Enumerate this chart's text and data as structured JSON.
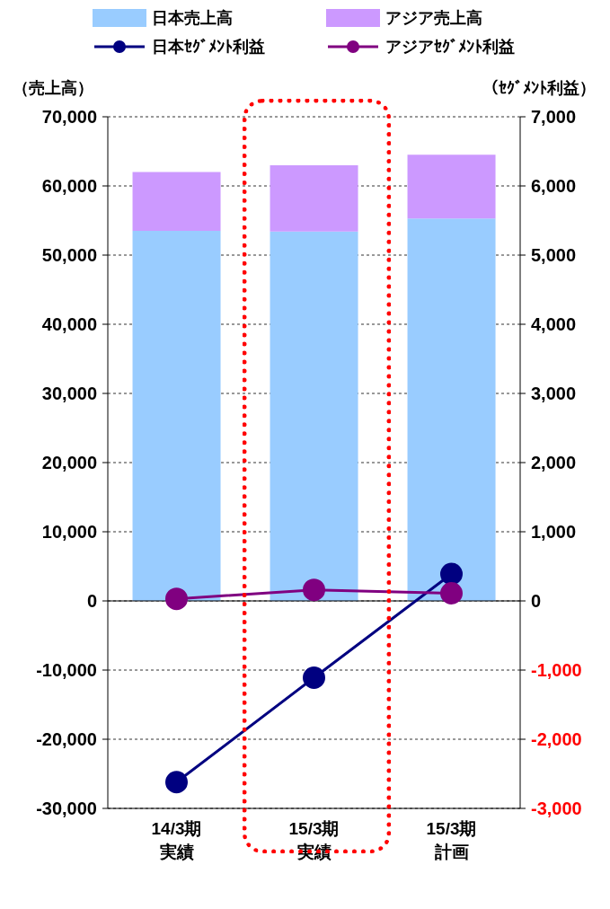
{
  "chart_data": {
    "type": "bar",
    "stacked": true,
    "categories": [
      "14/3期実績",
      "15/3期実績",
      "15/3期計画"
    ],
    "series": [
      {
        "name": "日本売上高",
        "color": "#99ccff",
        "values": [
          53500,
          53400,
          55300
        ]
      },
      {
        "name": "アジア売上高",
        "color": "#cc99ff",
        "values": [
          8500,
          9600,
          9200
        ]
      },
      {
        "name": "日本ｾｸﾞﾒﾝﾄ利益",
        "type": "line",
        "axis": "y2",
        "color": "#000080",
        "values": [
          -2620,
          -1110,
          390
        ]
      },
      {
        "name": "アジアｾｸﾞﾒﾝﾄ利益",
        "type": "line",
        "axis": "y2",
        "color": "#800080",
        "values": [
          30,
          160,
          110
        ]
      }
    ],
    "ylabel": "（売上高）",
    "y2label": "（ｾｸﾞﾒﾝﾄ利益）",
    "ylim": [
      -30000,
      70000
    ],
    "yticks": [
      {
        "value": -30000,
        "label": "-30,000"
      },
      {
        "value": -20000,
        "label": "-20,000"
      },
      {
        "value": -10000,
        "label": "-10,000"
      },
      0,
      {
        "value": 10000,
        "label": "10,000"
      },
      {
        "value": 20000,
        "label": "20,000"
      },
      {
        "value": 30000,
        "label": "30,000"
      },
      {
        "value": 40000,
        "label": "40,000"
      },
      {
        "value": 50000,
        "label": "50,000"
      },
      {
        "value": 60000,
        "label": "60,000"
      },
      {
        "value": 70000,
        "label": "70,000"
      }
    ],
    "y2lim": [
      -3000,
      7000
    ],
    "y2ticks": [
      {
        "value": -3000,
        "label": "-3,000"
      },
      {
        "value": -2000,
        "label": "-2,000"
      },
      {
        "value": -1000,
        "label": "-1,000"
      },
      0,
      {
        "value": 1000,
        "label": "1,000"
      },
      {
        "value": 2000,
        "label": "2,000"
      },
      {
        "value": 3000,
        "label": "3,000"
      },
      {
        "value": 4000,
        "label": "4,000"
      },
      {
        "value": 5000,
        "label": "5,000"
      },
      {
        "value": 6000,
        "label": "6,000"
      },
      {
        "value": 7000,
        "label": "7,000"
      }
    ],
    "grid": "y",
    "legend": "top",
    "marker": "circle",
    "line_style": "solid"
  }
}
